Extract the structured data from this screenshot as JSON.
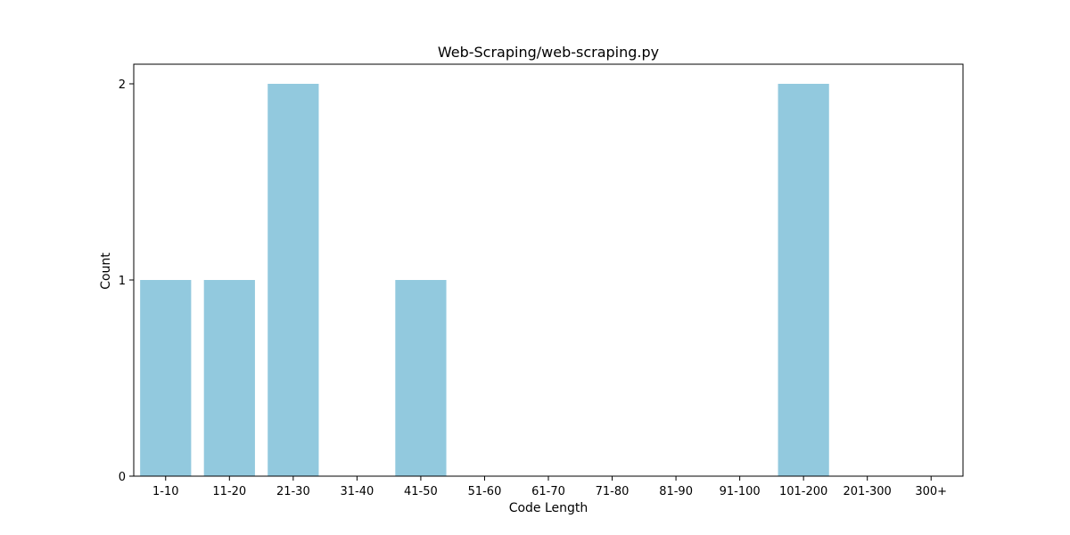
{
  "chart_data": {
    "type": "bar",
    "title": "Web-Scraping/web-scraping.py",
    "xlabel": "Code Length",
    "ylabel": "Count",
    "categories": [
      "1-10",
      "11-20",
      "21-30",
      "31-40",
      "41-50",
      "51-60",
      "61-70",
      "71-80",
      "81-90",
      "91-100",
      "101-200",
      "201-300",
      "300+"
    ],
    "values": [
      1,
      1,
      2,
      0,
      1,
      0,
      0,
      0,
      0,
      0,
      2,
      0,
      0
    ],
    "yticks": [
      "0",
      "1",
      "2"
    ],
    "ylim": [
      0,
      2.1
    ],
    "grid": false,
    "bar_color": "#92c9de"
  }
}
